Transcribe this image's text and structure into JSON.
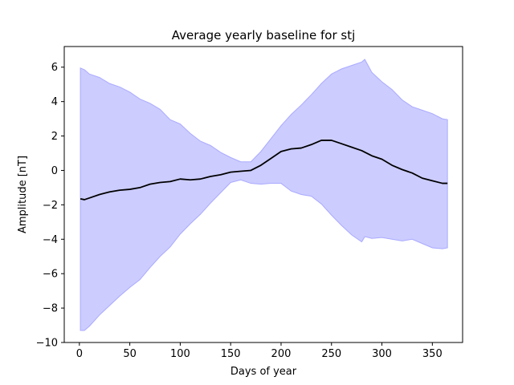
{
  "chart_data": {
    "type": "line",
    "title": "Average yearly baseline for stj",
    "xlabel": "Days of year",
    "ylabel": "Amplitude [nT]",
    "xlim": [
      -15,
      380
    ],
    "ylim": [
      -10,
      7.2
    ],
    "grid": false,
    "xticks": [
      0,
      50,
      100,
      150,
      200,
      250,
      300,
      350
    ],
    "yticks": [
      -10,
      -8,
      -6,
      -4,
      -2,
      0,
      2,
      4,
      6
    ],
    "colors": {
      "line": "#000000",
      "band_fill": "#ccccff",
      "band_edge": "#aaaaff"
    },
    "series": [
      {
        "kind": "line",
        "x": [
          1,
          5,
          10,
          20,
          30,
          40,
          50,
          60,
          70,
          80,
          90,
          100,
          110,
          120,
          130,
          140,
          150,
          160,
          170,
          180,
          190,
          200,
          210,
          220,
          230,
          240,
          250,
          260,
          270,
          280,
          290,
          300,
          310,
          320,
          330,
          340,
          350,
          360,
          365
        ],
        "y": [
          -1.65,
          -1.7,
          -1.6,
          -1.4,
          -1.25,
          -1.15,
          -1.1,
          -1.0,
          -0.8,
          -0.7,
          -0.65,
          -0.5,
          -0.55,
          -0.5,
          -0.35,
          -0.25,
          -0.1,
          -0.05,
          0.0,
          0.3,
          0.7,
          1.1,
          1.25,
          1.3,
          1.5,
          1.75,
          1.75,
          1.55,
          1.35,
          1.15,
          0.85,
          0.65,
          0.3,
          0.05,
          -0.15,
          -0.45,
          -0.6,
          -0.75,
          -0.75
        ]
      },
      {
        "kind": "band",
        "x": [
          1,
          5,
          10,
          20,
          30,
          40,
          50,
          60,
          70,
          80,
          90,
          100,
          110,
          120,
          130,
          140,
          150,
          160,
          170,
          180,
          190,
          200,
          210,
          220,
          230,
          240,
          250,
          260,
          270,
          280,
          283,
          290,
          300,
          310,
          320,
          330,
          340,
          350,
          360,
          365
        ],
        "upper": [
          5.95,
          5.85,
          5.6,
          5.4,
          5.05,
          4.85,
          4.55,
          4.15,
          3.9,
          3.55,
          2.95,
          2.7,
          2.15,
          1.7,
          1.45,
          1.05,
          0.75,
          0.5,
          0.5,
          1.1,
          1.85,
          2.6,
          3.25,
          3.8,
          4.4,
          5.05,
          5.6,
          5.9,
          6.1,
          6.3,
          6.45,
          5.7,
          5.15,
          4.7,
          4.1,
          3.7,
          3.5,
          3.3,
          3.0,
          2.95
        ],
        "lower": [
          -9.3,
          -9.3,
          -9.05,
          -8.4,
          -7.85,
          -7.3,
          -6.8,
          -6.35,
          -5.65,
          -5.0,
          -4.45,
          -3.7,
          -3.1,
          -2.55,
          -1.9,
          -1.3,
          -0.7,
          -0.55,
          -0.75,
          -0.8,
          -0.75,
          -0.75,
          -1.2,
          -1.4,
          -1.5,
          -1.95,
          -2.6,
          -3.2,
          -3.75,
          -4.15,
          -3.85,
          -3.95,
          -3.9,
          -4.0,
          -4.1,
          -4.0,
          -4.25,
          -4.5,
          -4.55,
          -4.5
        ]
      }
    ]
  }
}
